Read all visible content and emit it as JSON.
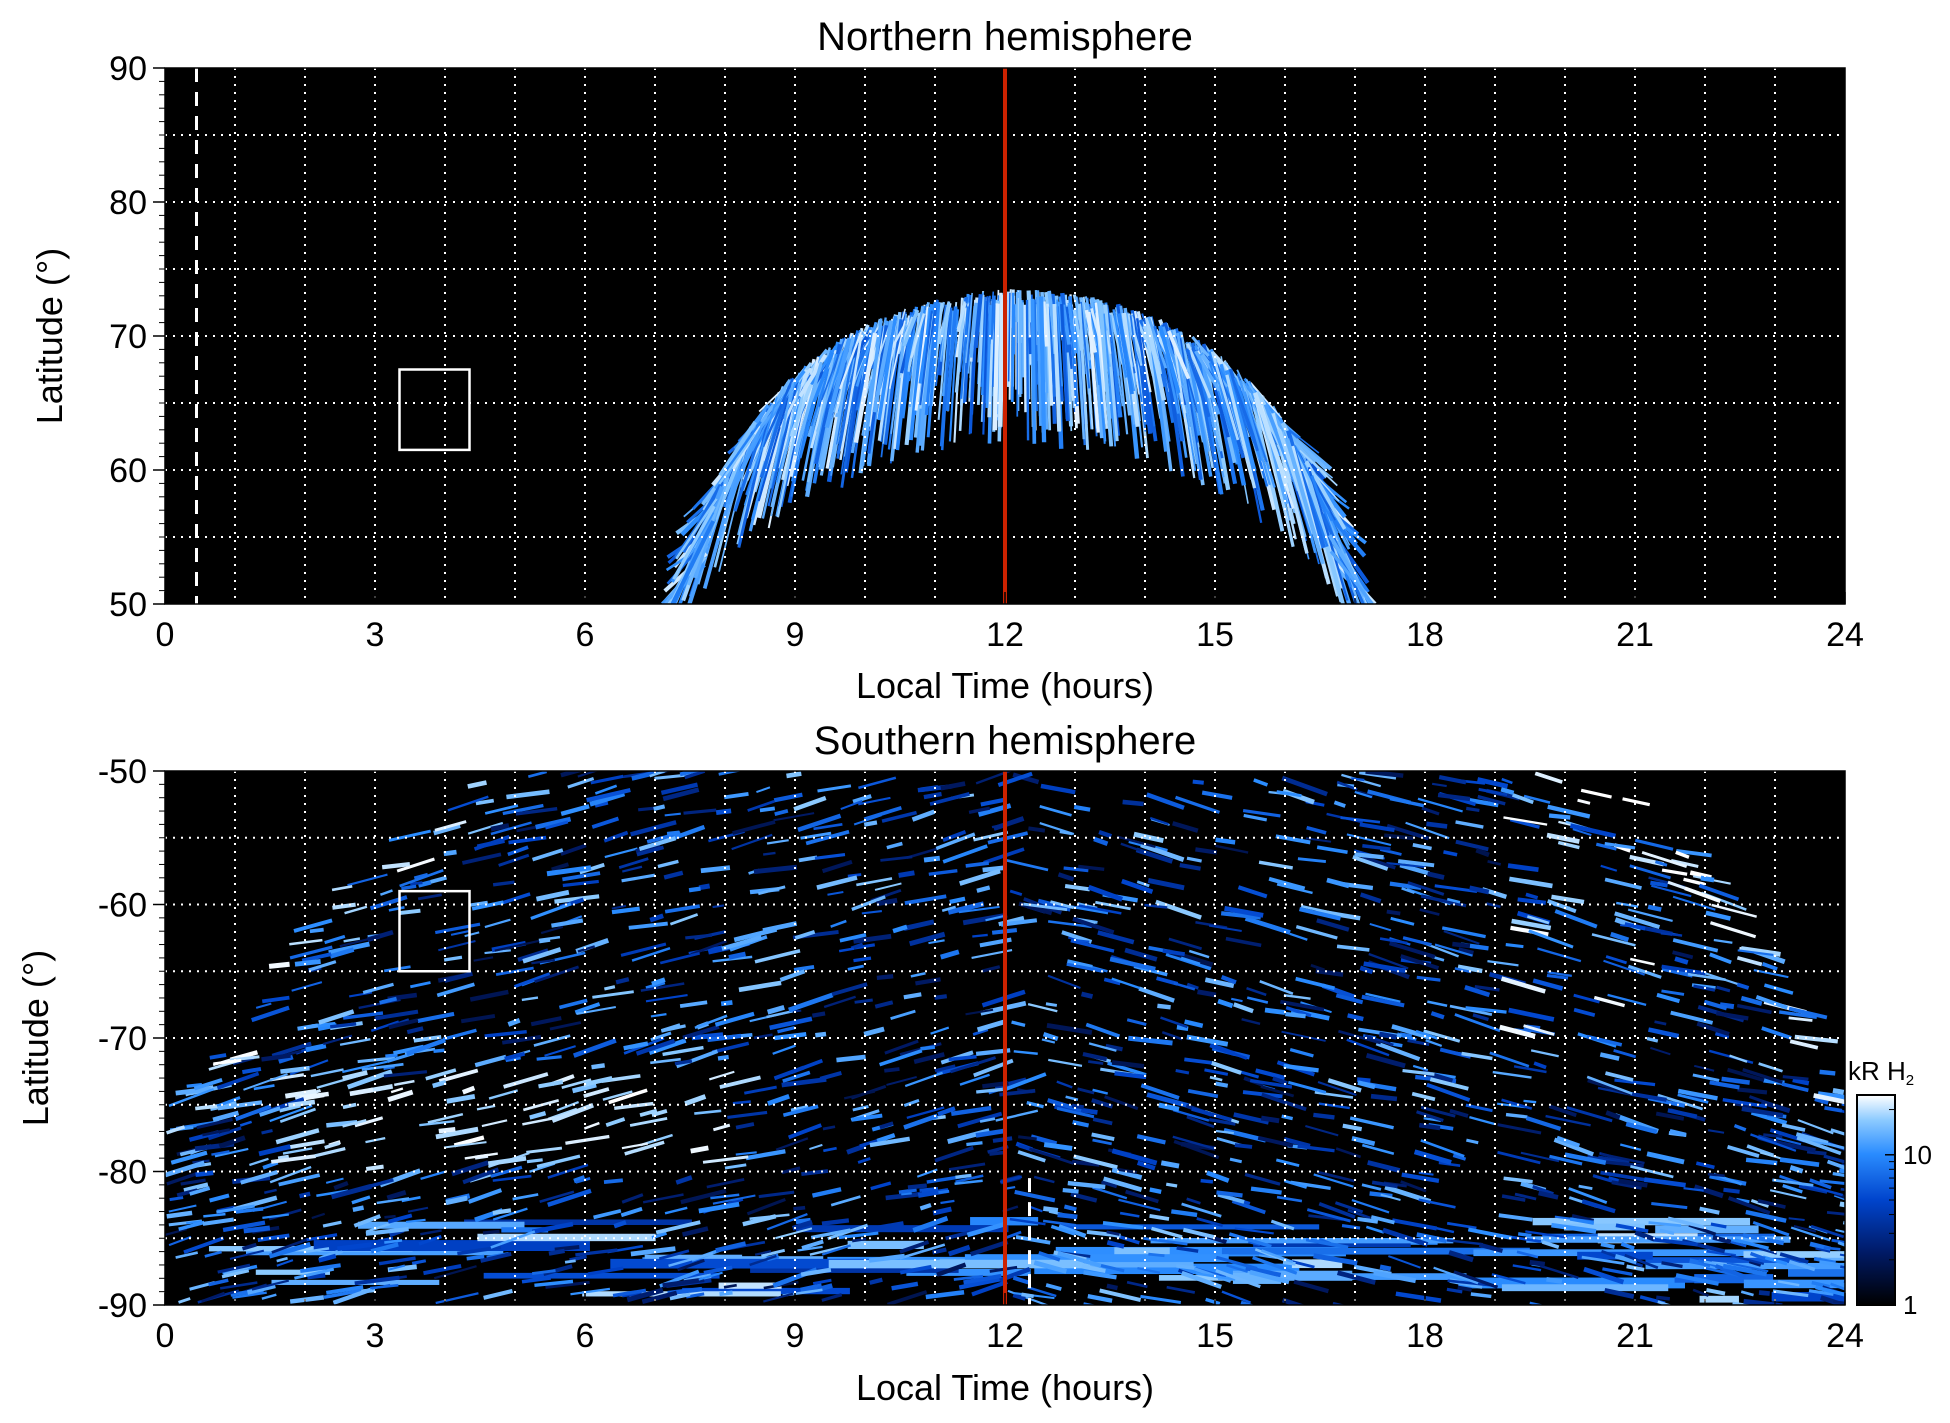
{
  "chart_data": [
    {
      "type": "heatmap",
      "title": "Northern hemisphere",
      "xlabel": "Local Time (hours)",
      "ylabel": "Latitude (°)",
      "xlim": [
        0,
        24
      ],
      "ylim": [
        50,
        90
      ],
      "x_ticks": [
        "0",
        "3",
        "6",
        "9",
        "12",
        "15",
        "18",
        "21",
        "24"
      ],
      "y_ticks": [
        "90",
        "80",
        "70",
        "60",
        "50"
      ],
      "grid": true,
      "background_color": "#000000",
      "colormap": [
        "#000000",
        "#001a66",
        "#0044cc",
        "#2a8cff",
        "#8ccaff",
        "#ffffff"
      ],
      "emission_region": {
        "local_time_range": [
          7.7,
          16.7
        ],
        "peak_latitude": 73.5,
        "edge_latitude": 52
      },
      "red_line_local_time": 12,
      "red_line_color": "#cc2200",
      "dashed_line_local_time": 0.45,
      "box": {
        "local_time": [
          3.35,
          4.35
        ],
        "latitude": [
          61.5,
          67.5
        ]
      }
    },
    {
      "type": "heatmap",
      "title": "Southern hemisphere",
      "xlabel": "Local Time (hours)",
      "ylabel": "Latitude (°)",
      "xlim": [
        0,
        24
      ],
      "ylim": [
        -90,
        -50
      ],
      "x_ticks": [
        "0",
        "3",
        "6",
        "9",
        "12",
        "15",
        "18",
        "21",
        "24"
      ],
      "y_ticks": [
        "-50",
        "-60",
        "-70",
        "-80",
        "-90"
      ],
      "grid": true,
      "background_color": "#000000",
      "emission_edge_latitude": -75,
      "bright_band": {
        "local_time_range": [
          1.5,
          8.0
        ],
        "latitude": -77
      },
      "red_line_local_time": 12,
      "red_line_color": "#cc2200",
      "dashed_line_local_time": 12.35,
      "box": {
        "local_time": [
          3.35,
          4.35
        ],
        "latitude": [
          -65,
          -59
        ]
      },
      "colorbar": {
        "label": "kR H",
        "label_subscript": "2",
        "ticks": [
          "1",
          "10"
        ],
        "tick_values": [
          1,
          10
        ],
        "range": [
          1,
          25
        ],
        "scale": "log"
      }
    }
  ]
}
